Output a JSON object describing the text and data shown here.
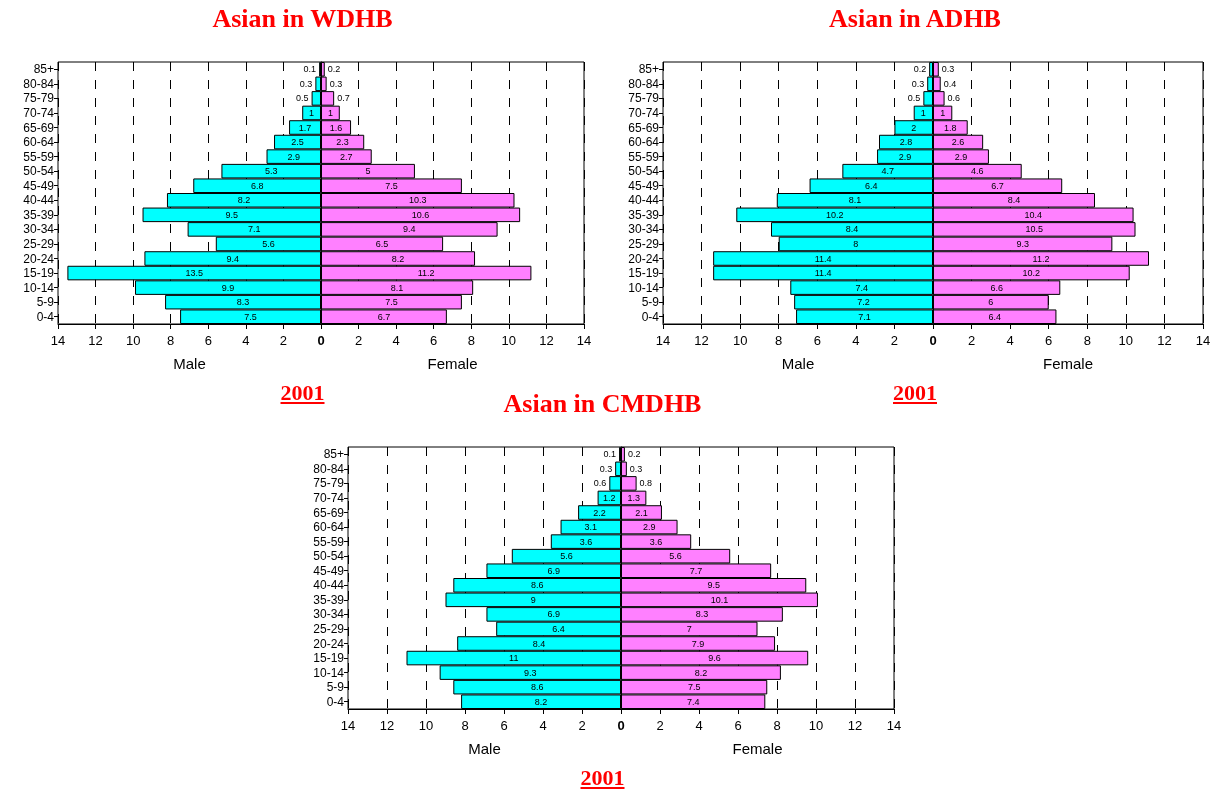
{
  "chart_data": [
    {
      "type": "bar",
      "orientation": "horizontal",
      "title": "Asian in WDHB",
      "xlabel": "Male",
      "categories": [
        "85+",
        "80-84",
        "75-79",
        "70-74",
        "65-69",
        "60-64",
        "55-59",
        "50-54",
        "45-49",
        "40-44",
        "35-39",
        "30-34",
        "25-29",
        "20-24",
        "15-19",
        "10-14",
        "5-9",
        "0-4"
      ],
      "series": [
        {
          "color": "#00ffff",
          "values": [
            0.1,
            0.3,
            0.5,
            1,
            1.7,
            2.5,
            2.9,
            5.3,
            6.8,
            8.2,
            9.5,
            7.1,
            5.6,
            9.4,
            13.5,
            9.9,
            8.3,
            7.5
          ]
        }
      ],
      "xlim": [
        14,
        0
      ],
      "xticks": [
        14,
        12,
        10,
        8,
        6,
        4,
        2,
        0
      ],
      "grid": "x",
      "data_labels": true,
      "annotations": [
        "2001"
      ]
    },
    {
      "type": "bar",
      "orientation": "horizontal",
      "xlabel": "Female",
      "categories": [
        null,
        null,
        null,
        null,
        null,
        null,
        null,
        null,
        null,
        null,
        null,
        null,
        null,
        null,
        null,
        null,
        null,
        null
      ],
      "series": [
        {
          "color": "#ff80ff",
          "values": [
            0.2,
            0.3,
            0.7,
            1,
            1.6,
            2.3,
            2.7,
            5,
            7.5,
            10.3,
            10.6,
            9.4,
            6.5,
            8.2,
            11.2,
            8.1,
            7.5,
            6.7
          ]
        }
      ],
      "xlim": [
        0,
        14
      ],
      "xticks": [
        2,
        4,
        6,
        8,
        10,
        12,
        14
      ],
      "grid": "x",
      "data_labels": true,
      "tick_labels": "x"
    },
    {
      "type": "bar",
      "orientation": "horizontal",
      "title": "Asian in ADHB",
      "xlabel": "Male",
      "categories": [
        "85+",
        "80-84",
        "75-79",
        "70-74",
        "65-69",
        "60-64",
        "55-59",
        "50-54",
        "45-49",
        "40-44",
        "35-39",
        "30-34",
        "25-29",
        "20-24",
        "15-19",
        "10-14",
        "5-9",
        "0-4"
      ],
      "series": [
        {
          "color": "#00ffff",
          "values": [
            0.2,
            0.3,
            0.5,
            1,
            2,
            2.8,
            2.9,
            4.7,
            6.4,
            8.1,
            10.2,
            8.4,
            8,
            11.4,
            11.4,
            7.4,
            7.2,
            7.1
          ]
        }
      ],
      "xlim": [
        14,
        0
      ],
      "xticks": [
        14,
        12,
        10,
        8,
        6,
        4,
        2,
        0
      ],
      "grid": "x",
      "data_labels": true,
      "annotations": [
        "2001"
      ]
    },
    {
      "type": "bar",
      "orientation": "horizontal",
      "xlabel": "Female",
      "categories": [
        null,
        null,
        null,
        null,
        null,
        null,
        null,
        null,
        null,
        null,
        null,
        null,
        null,
        null,
        null,
        null,
        null,
        null
      ],
      "series": [
        {
          "color": "#ff80ff",
          "values": [
            0.3,
            0.4,
            0.6,
            1,
            1.8,
            2.6,
            2.9,
            4.6,
            6.7,
            8.4,
            10.4,
            10.5,
            9.3,
            11.2,
            10.2,
            6.6,
            6,
            6.4
          ]
        }
      ],
      "xlim": [
        0,
        14
      ],
      "xticks": [
        2,
        4,
        6,
        8,
        10,
        12,
        14
      ],
      "grid": "x",
      "data_labels": true,
      "tick_labels": "x"
    },
    {
      "type": "bar",
      "orientation": "horizontal",
      "title": "Asian in CMDHB",
      "xlabel": "Male",
      "categories": [
        "85+",
        "80-84",
        "75-79",
        "70-74",
        "65-69",
        "60-64",
        "55-59",
        "50-54",
        "45-49",
        "40-44",
        "35-39",
        "30-34",
        "25-29",
        "20-24",
        "15-19",
        "10-14",
        "5-9",
        "0-4"
      ],
      "series": [
        {
          "color": "#00ffff",
          "values": [
            0.1,
            0.3,
            0.6,
            1.2,
            2.2,
            3.1,
            3.6,
            5.6,
            6.9,
            8.6,
            9,
            6.9,
            6.4,
            8.4,
            11,
            9.3,
            8.6,
            8.2
          ]
        }
      ],
      "xlim": [
        14,
        0
      ],
      "xticks": [
        14,
        12,
        10,
        8,
        6,
        4,
        2,
        0
      ],
      "grid": "x",
      "data_labels": true,
      "annotations": [
        "2001"
      ]
    },
    {
      "type": "bar",
      "orientation": "horizontal",
      "xlabel": "Female",
      "categories": [
        null,
        null,
        null,
        null,
        null,
        null,
        null,
        null,
        null,
        null,
        null,
        null,
        null,
        null,
        null,
        null,
        null,
        null
      ],
      "series": [
        {
          "color": "#ff80ff",
          "values": [
            0.2,
            0.3,
            0.8,
            1.3,
            2.1,
            2.9,
            3.6,
            5.6,
            7.7,
            9.5,
            10.1,
            8.3,
            7,
            7.9,
            9.6,
            8.2,
            7.5,
            7.4
          ]
        }
      ],
      "xlim": [
        0,
        14
      ],
      "xticks": [
        2,
        4,
        6,
        8,
        10,
        12,
        14
      ],
      "grid": "x",
      "data_labels": true,
      "tick_labels": "x"
    }
  ]
}
